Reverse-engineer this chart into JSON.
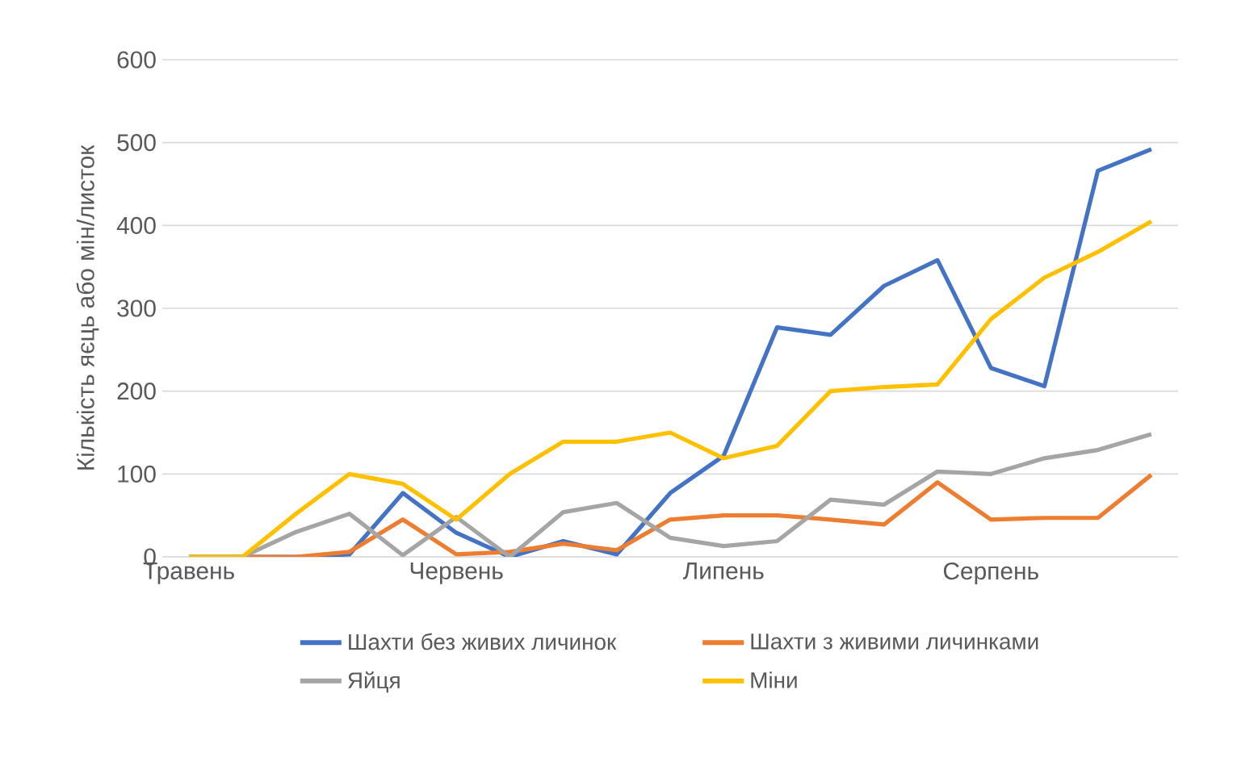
{
  "chart_data": {
    "type": "line",
    "ylabel": "Кількість яєць або мін/листок",
    "categories": [
      "Травень",
      null,
      null,
      null,
      null,
      "Червень",
      null,
      null,
      null,
      null,
      "Липень",
      null,
      null,
      null,
      null,
      "Серпень",
      null,
      null,
      null
    ],
    "series": [
      {
        "name": "Шахти без живих личинок",
        "color": "#4472c4",
        "values": [
          0,
          0,
          0,
          3,
          77,
          29,
          0,
          19,
          3,
          77,
          122,
          277,
          268,
          327,
          358,
          228,
          206,
          466,
          492
        ]
      },
      {
        "name": "Шахти з живими личинками",
        "color": "#ed7d31",
        "values": [
          0,
          0,
          0,
          6,
          45,
          3,
          6,
          16,
          8,
          45,
          50,
          50,
          45,
          39,
          90,
          45,
          47,
          47,
          99
        ]
      },
      {
        "name": "Яйця",
        "color": "#a5a5a5",
        "values": [
          0,
          0,
          30,
          52,
          2,
          48,
          0,
          54,
          65,
          23,
          13,
          19,
          69,
          63,
          103,
          100,
          119,
          129,
          148
        ]
      },
      {
        "name": "Міни",
        "color": "#ffc000",
        "values": [
          0,
          0,
          52,
          100,
          88,
          45,
          100,
          139,
          139,
          150,
          119,
          134,
          200,
          205,
          208,
          287,
          337,
          368,
          405
        ]
      }
    ],
    "ylim": [
      0,
      600
    ],
    "yticks": [
      0,
      100,
      200,
      300,
      400,
      500,
      600
    ],
    "grid": "y",
    "legend": "bottom"
  }
}
